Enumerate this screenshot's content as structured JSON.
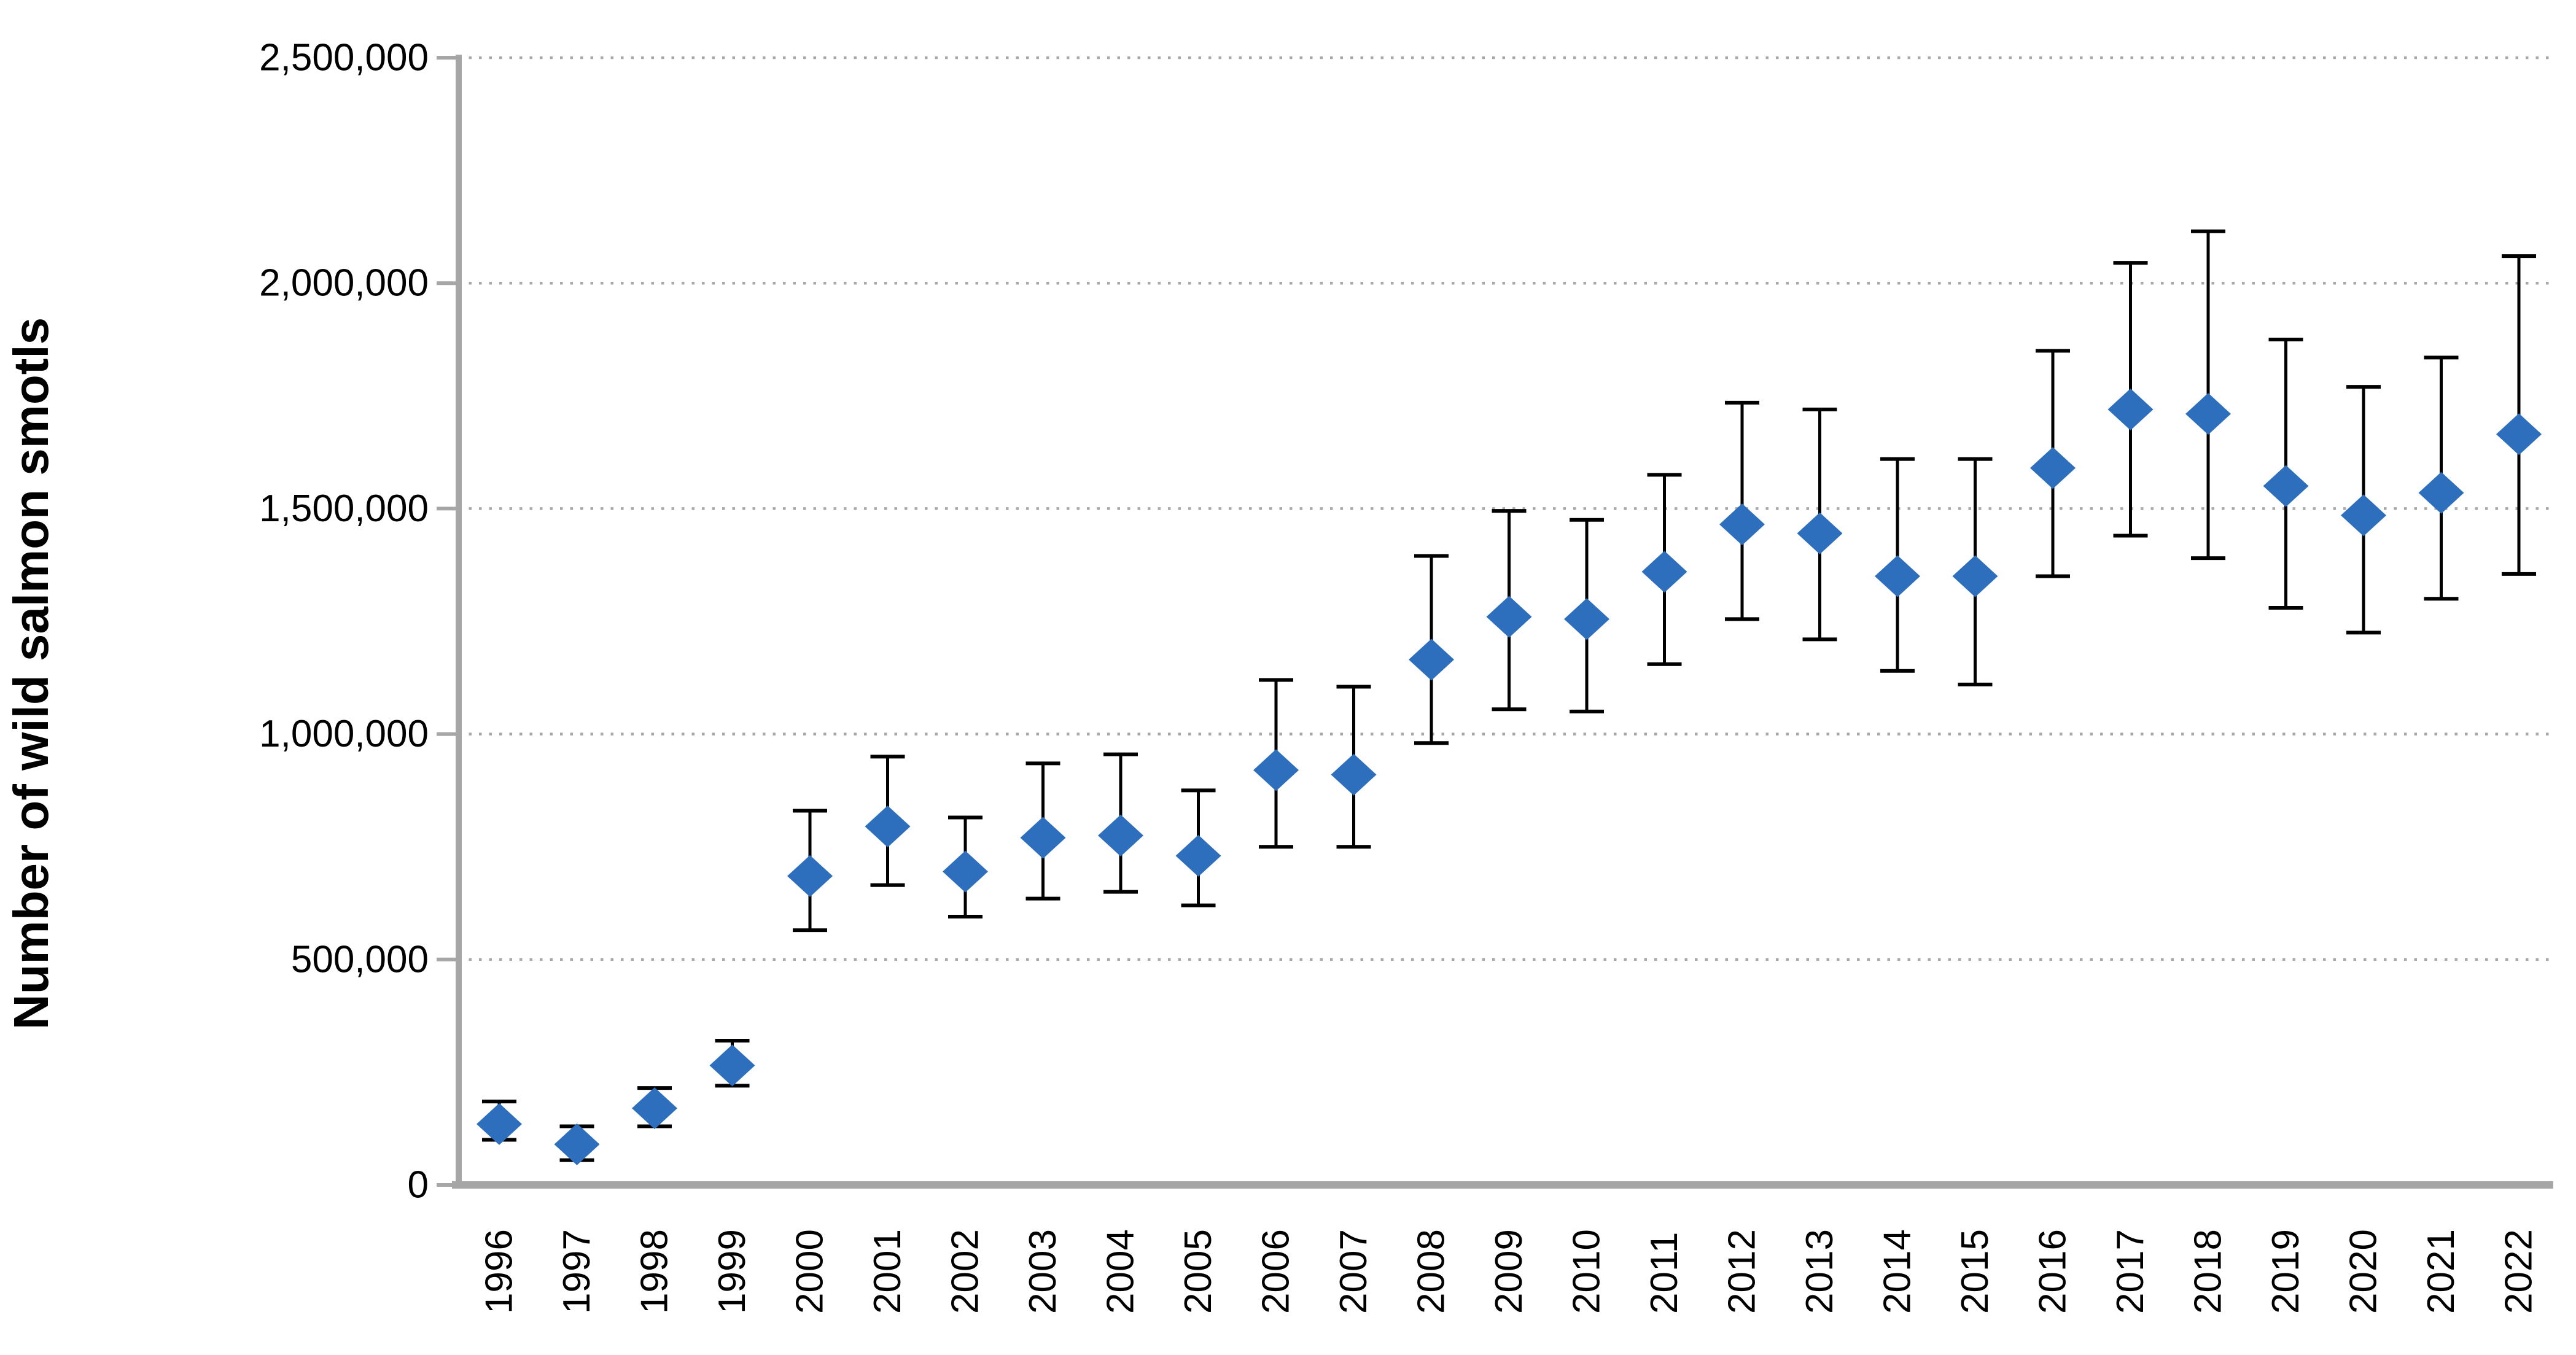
{
  "figure": {
    "background_color": "#FFFFFF",
    "axis_color": "#A6A6A6",
    "gridline_color": "#A9A9A9",
    "error_bar_color": "#000000",
    "marker_color": "#2E6FBD",
    "text_color": "#000000"
  },
  "chart_data": {
    "type": "scatter",
    "title": "",
    "xlabel": "",
    "ylabel": "Number of wild salmon smotls",
    "marker": "diamond",
    "error_bars": "vertical-with-caps",
    "grid": "horizontal-dotted",
    "legend_position": "none",
    "ylim": [
      0,
      2500000
    ],
    "ytick_interval": 500000,
    "ytick_labels": [
      "0",
      "500,000",
      "1,000,000",
      "1,500,000",
      "2,000,000",
      "2,500,000"
    ],
    "x": [
      1996,
      1997,
      1998,
      1999,
      2000,
      2001,
      2002,
      2003,
      2004,
      2005,
      2006,
      2007,
      2008,
      2009,
      2010,
      2011,
      2012,
      2013,
      2014,
      2015,
      2016,
      2017,
      2018,
      2019,
      2020,
      2021,
      2022
    ],
    "y": [
      135000,
      90000,
      170000,
      265000,
      685000,
      795000,
      695000,
      770000,
      775000,
      730000,
      920000,
      910000,
      1165000,
      1260000,
      1255000,
      1360000,
      1465000,
      1445000,
      1350000,
      1350000,
      1590000,
      1720000,
      1710000,
      1550000,
      1485000,
      1535000,
      1665000
    ],
    "error_low": [
      100000,
      55000,
      130000,
      220000,
      565000,
      665000,
      595000,
      635000,
      650000,
      620000,
      750000,
      750000,
      980000,
      1055000,
      1050000,
      1155000,
      1255000,
      1210000,
      1140000,
      1110000,
      1350000,
      1440000,
      1390000,
      1280000,
      1225000,
      1300000,
      1355000
    ],
    "error_high": [
      185000,
      130000,
      215000,
      320000,
      830000,
      950000,
      815000,
      935000,
      955000,
      875000,
      1120000,
      1105000,
      1395000,
      1495000,
      1475000,
      1575000,
      1735000,
      1720000,
      1610000,
      1610000,
      1850000,
      2045000,
      2115000,
      1875000,
      1770000,
      1835000,
      2060000
    ]
  }
}
